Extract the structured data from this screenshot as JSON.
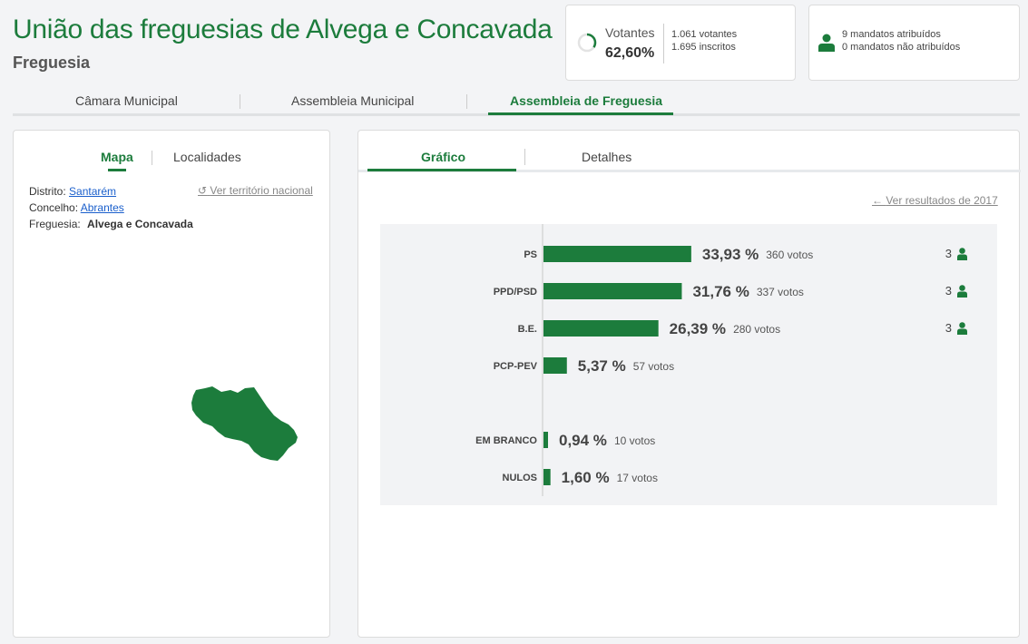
{
  "header": {
    "title": "União das freguesias de Alvega e Concavada",
    "subtitle": "Freguesia"
  },
  "turnout": {
    "label": "Votantes",
    "percent_text": "62,60%",
    "percent": 62.6,
    "voters_text": "1.061 votantes",
    "registered_text": "1.695 inscritos",
    "accent": "#1c7c3c"
  },
  "mandates": {
    "assigned_text": "9 mandatos atribuídos",
    "unassigned_text": "0 mandatos não atribuídos",
    "icon": "person-icon"
  },
  "top_tabs": [
    {
      "label": "Câmara Municipal",
      "active": false
    },
    {
      "label": "Assembleia Municipal",
      "active": false
    },
    {
      "label": "Assembleia de Freguesia",
      "active": true
    }
  ],
  "left_panel": {
    "tabs": [
      {
        "label": "Mapa",
        "active": true
      },
      {
        "label": "Localidades",
        "active": false
      }
    ],
    "distrito_label": "Distrito:",
    "distrito_value": "Santarém",
    "concelho_label": "Concelho:",
    "concelho_value": "Abrantes",
    "freguesia_label": "Freguesia:",
    "freguesia_value": "Alvega e Concavada",
    "national_link": "Ver território nacional",
    "map_color": "#1c7c3c"
  },
  "right_panel": {
    "tabs": [
      {
        "label": "Gráfico",
        "active": true
      },
      {
        "label": "Detalhes",
        "active": false
      }
    ],
    "previous_results_link": "Ver resultados de 2017"
  },
  "chart_data": {
    "type": "bar",
    "orientation": "horizontal",
    "bar_color": "#1c7c3c",
    "categories": [
      "PS",
      "PPD/PSD",
      "B.E.",
      "PCP-PEV",
      "EM BRANCO",
      "NULOS"
    ],
    "values": [
      33.93,
      31.76,
      26.39,
      5.37,
      0.94,
      1.6
    ],
    "value_labels": [
      "33,93 %",
      "31,76 %",
      "26,39 %",
      "5,37 %",
      "0,94 %",
      "1,60 %"
    ],
    "votes_labels": [
      "360 votos",
      "337 votos",
      "280 votos",
      "57 votos",
      "10 votos",
      "17 votos"
    ],
    "mandates": [
      "3",
      "3",
      "3",
      "",
      "",
      ""
    ]
  }
}
